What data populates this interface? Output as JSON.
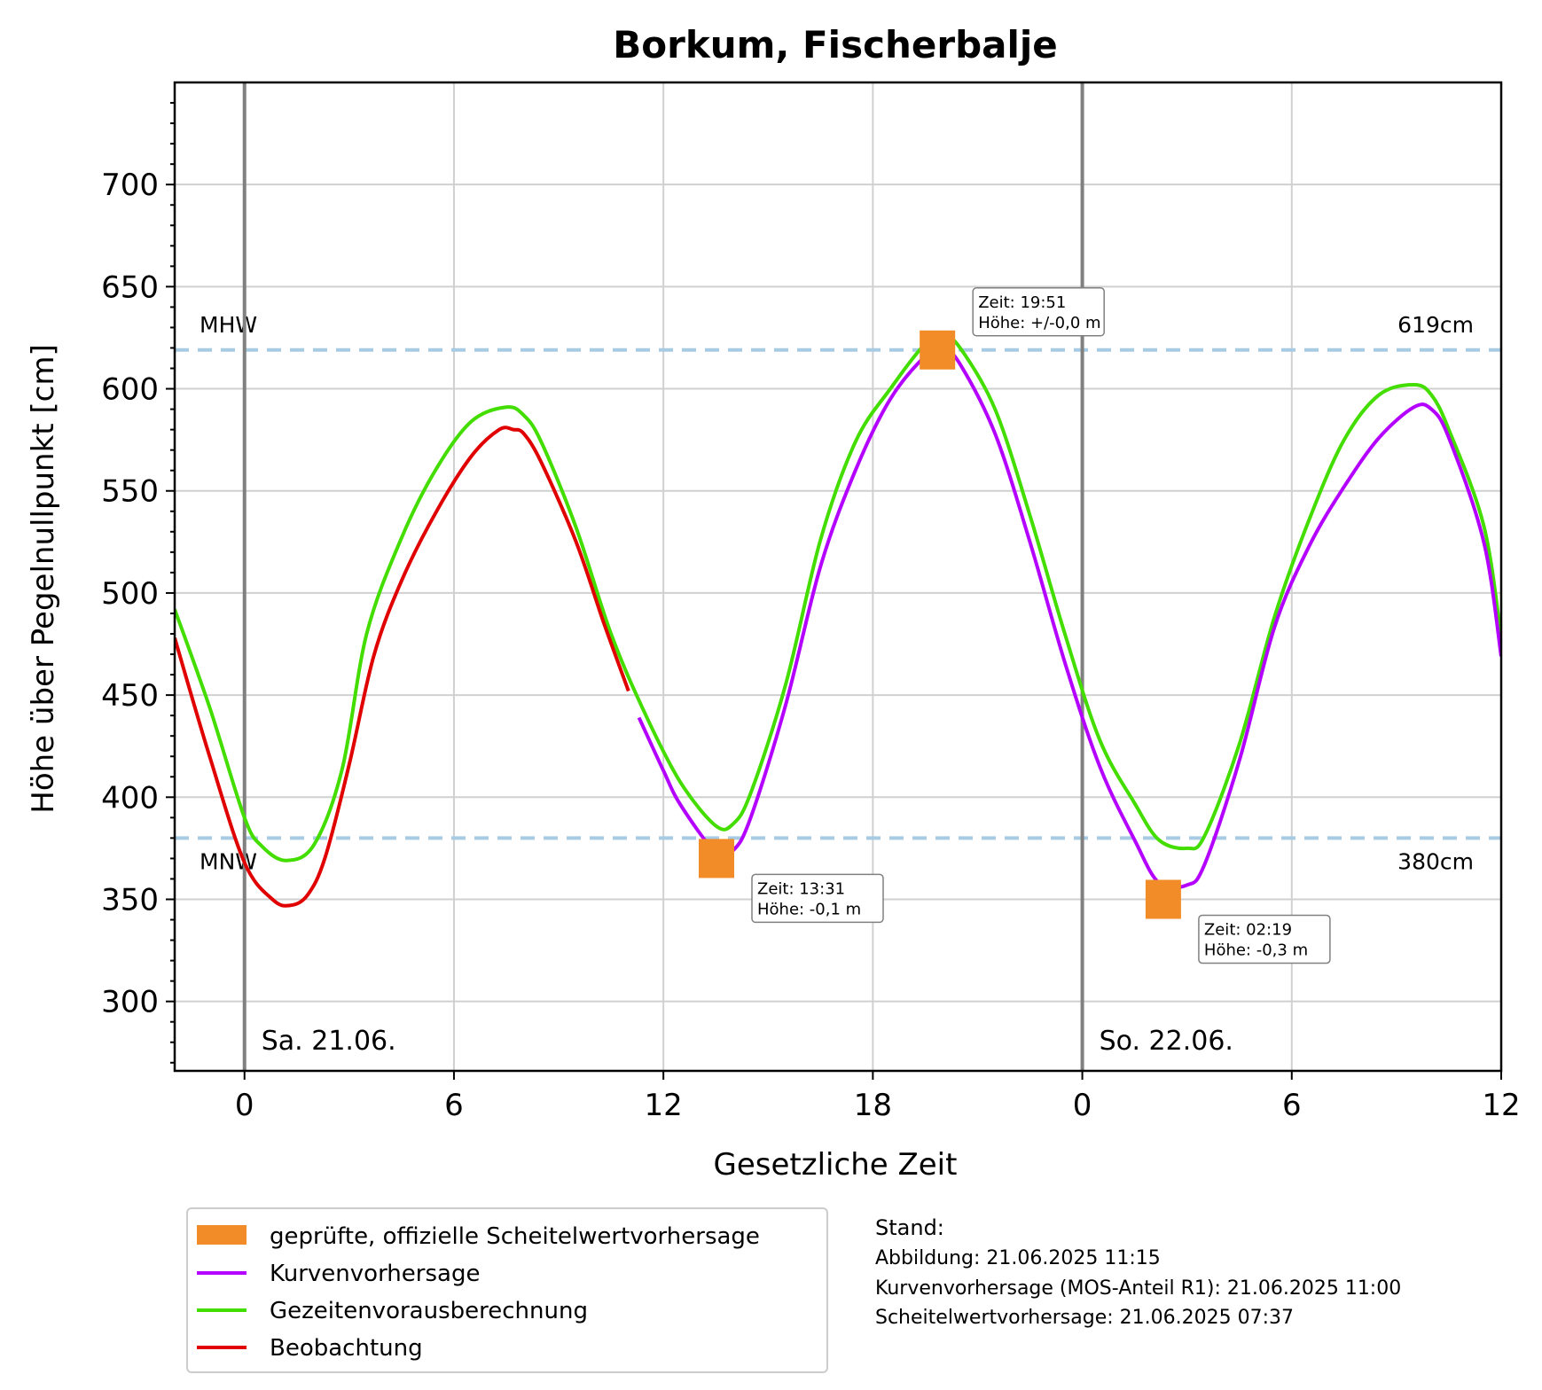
{
  "chart_data": {
    "type": "line",
    "title": "Borkum, Fischerbalje",
    "xlabel": "Gesetzliche Zeit",
    "ylabel": "Höhe über Pegelnullpunkt [cm]",
    "xlim_hours": [
      -2,
      36
    ],
    "ylim": [
      266,
      750
    ],
    "yticks": [
      300,
      350,
      400,
      450,
      500,
      550,
      600,
      650,
      700
    ],
    "xticks": [
      {
        "hour": 0,
        "label": "0"
      },
      {
        "hour": 6,
        "label": "6"
      },
      {
        "hour": 12,
        "label": "12"
      },
      {
        "hour": 18,
        "label": "18"
      },
      {
        "hour": 24,
        "label": "0"
      },
      {
        "hour": 30,
        "label": "6"
      },
      {
        "hour": 36,
        "label": "12"
      }
    ],
    "grid": true,
    "day_markers": [
      {
        "hour": 0,
        "label": "Sa. 21.06."
      },
      {
        "hour": 24,
        "label": "So. 22.06."
      }
    ],
    "reference_lines": [
      {
        "name": "MHW",
        "value": 619,
        "value_label": "619cm",
        "color": "#a6cbe3"
      },
      {
        "name": "MNW",
        "value": 380,
        "value_label": "380cm",
        "color": "#a6cbe3"
      }
    ],
    "series": [
      {
        "name": "Gezeitenvorausberechnung",
        "color": "#44dd00",
        "x": [
          -2,
          -1,
          0,
          0.5,
          1.2,
          2,
          2.8,
          3.5,
          4.5,
          5.5,
          6.5,
          7.5,
          8,
          8.5,
          9.5,
          10.5,
          11.5,
          12.5,
          13.5,
          14,
          14.5,
          15.5,
          16.5,
          17.5,
          18.5,
          19.5,
          20,
          20.5,
          21.5,
          22.5,
          23.5,
          24.5,
          25.5,
          26.2,
          27,
          27.5,
          28.5,
          29.5,
          30.5,
          31.5,
          32.5,
          33.5,
          34,
          34.5,
          35.5,
          36
        ],
        "y": [
          492,
          444,
          390,
          376,
          369,
          377,
          414,
          480,
          527,
          561,
          584,
          591,
          587,
          574,
          532,
          480,
          440,
          407,
          386,
          387,
          402,
          455,
          526,
          574,
          600,
          622,
          626,
          620,
          590,
          538,
          480,
          428,
          397,
          379,
          375,
          381,
          426,
          488,
          536,
          575,
          597,
          602,
          597,
          580,
          533,
          478
        ]
      },
      {
        "name": "Kurvenvorhersage",
        "color": "#b400ff",
        "x": [
          11.3,
          12,
          12.5,
          13.5,
          14,
          14.5,
          15.5,
          16.5,
          17.5,
          18.5,
          19.5,
          20,
          20.5,
          21.5,
          22.5,
          23.5,
          24.5,
          25.5,
          26.2,
          27,
          27.5,
          28.5,
          29.5,
          30.5,
          31.5,
          32.5,
          33.5,
          34,
          34.5,
          35.5,
          36
        ],
        "y": [
          439,
          413,
          396,
          373,
          374,
          390,
          445,
          513,
          560,
          595,
          616,
          620,
          612,
          578,
          525,
          466,
          415,
          379,
          358,
          357,
          367,
          418,
          483,
          523,
          552,
          576,
          591,
          590,
          576,
          525,
          469
        ]
      },
      {
        "name": "Beobachtung",
        "color": "#e00000",
        "x": [
          -2,
          -1,
          0,
          0.8,
          1.3,
          1.8,
          2.3,
          3,
          3.7,
          4.5,
          5.5,
          6.5,
          7.3,
          7.7,
          8,
          8.5,
          9.5,
          10.3,
          11
        ],
        "y": [
          478,
          420,
          368,
          350,
          347,
          352,
          370,
          416,
          469,
          506,
          540,
          567,
          580,
          580,
          578,
          564,
          525,
          485,
          452
        ]
      },
      {
        "name": "geprüfte, offizielle Scheitelwertvorhersage",
        "color": "#f28c28",
        "type": "scatter",
        "points": [
          {
            "x": 13.52,
            "y": 370,
            "label_time": "Zeit: 13:31",
            "label_height": "Höhe: -0,1 m"
          },
          {
            "x": 19.85,
            "y": 619,
            "label_time": "Zeit: 19:51",
            "label_height": "Höhe: +/-0,0 m"
          },
          {
            "x": 26.32,
            "y": 350,
            "label_time": "Zeit: 02:19",
            "label_height": "Höhe: -0,3 m"
          }
        ]
      }
    ],
    "legend": {
      "placement": "bottom-left",
      "entries": [
        {
          "label": "geprüfte, offizielle Scheitelwertvorhersage",
          "color": "#f28c28",
          "kind": "patch"
        },
        {
          "label": "Kurvenvorhersage",
          "color": "#b400ff",
          "kind": "line"
        },
        {
          "label": "Gezeitenvorausberechnung",
          "color": "#44dd00",
          "kind": "line"
        },
        {
          "label": "Beobachtung",
          "color": "#e00000",
          "kind": "line"
        }
      ]
    },
    "stand": {
      "title": "Stand:",
      "lines": [
        "Abbildung: 21.06.2025 11:15",
        "Kurvenvorhersage (MOS-Anteil R1): 21.06.2025 11:00",
        "Scheitelwertvorhersage: 21.06.2025 07:37"
      ]
    }
  }
}
